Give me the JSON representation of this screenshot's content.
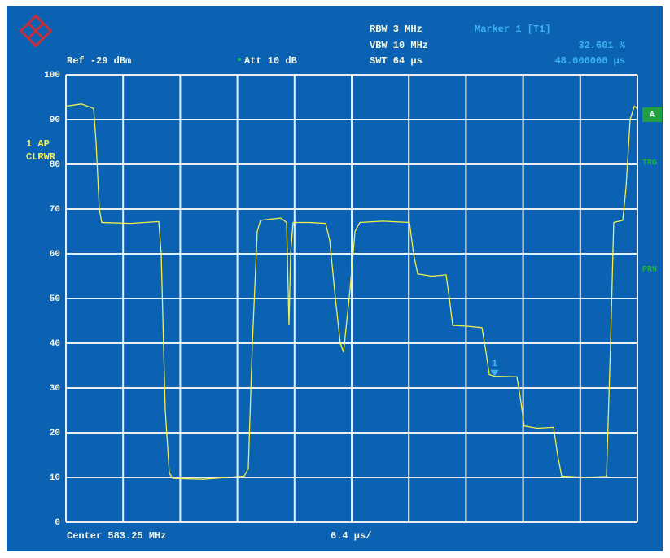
{
  "chart_data": {
    "type": "line",
    "ref_level": "Ref -29 dBm",
    "attenuation": "Att 10 dB",
    "rbw": "RBW 3 MHz",
    "vbw": "VBW 10 MHz",
    "swt": "SWT 64 µs",
    "trace_info": [
      "1 AP",
      "CLRWR"
    ],
    "side_labels": [
      "A",
      "TRG",
      "PRN"
    ],
    "center": "Center 583.25 MHz",
    "span_per_div": "6.4 µs/",
    "marker": {
      "label": "1",
      "title": "Marker 1 [T1]",
      "x": 48,
      "value": 32.601,
      "value_label": "32.601 %",
      "x_label": "48.000000 µs"
    },
    "x": [
      0,
      1.73,
      3.1,
      3.37,
      3.74,
      4.01,
      7.2,
      10.39,
      10.67,
      11.12,
      11.58,
      11.94,
      15.41,
      19.97,
      20.42,
      20.88,
      21.42,
      21.79,
      24.07,
      24.71,
      24.98,
      25.16,
      25.44,
      27.26,
      29.08,
      29.54,
      30.18,
      30.72,
      31.09,
      31.82,
      32.37,
      32.91,
      35.46,
      38.47,
      38.93,
      39.39,
      40.94,
      42.58,
      42.94,
      43.31,
      45.04,
      46.59,
      47.04,
      47.41,
      48.0,
      50.51,
      50.87,
      51.33,
      52.79,
      54.61,
      55.07,
      55.52,
      58.26,
      60.54,
      60.99,
      61.35,
      62.36,
      62.73,
      63.18,
      63.64,
      64.0
    ],
    "values": [
      93,
      93.5,
      92.5,
      85,
      70,
      67,
      66.8,
      67.2,
      60,
      25,
      11,
      9.8,
      9.6,
      10.3,
      12,
      40,
      65,
      67.5,
      68,
      67,
      44,
      60,
      67,
      67,
      66.8,
      63,
      50,
      40,
      38,
      52,
      65,
      67,
      67.3,
      67,
      60,
      55.5,
      55,
      55.3,
      50,
      44,
      43.8,
      43.5,
      38,
      33,
      32.6,
      32.5,
      28,
      21.5,
      21,
      21.2,
      15,
      10.3,
      10,
      10.2,
      40,
      67,
      67.5,
      75,
      90,
      93,
      92.5
    ],
    "color": "#f0f050",
    "xlim": [
      0,
      64
    ],
    "ylim": [
      0,
      100
    ],
    "xticks": [
      0,
      6.4,
      12.8,
      19.2,
      25.6,
      32,
      38.4,
      44.8,
      51.2,
      57.6,
      64
    ],
    "yticks": [
      0,
      10,
      20,
      30,
      40,
      50,
      60,
      70,
      80,
      90,
      100
    ],
    "grid": true
  }
}
